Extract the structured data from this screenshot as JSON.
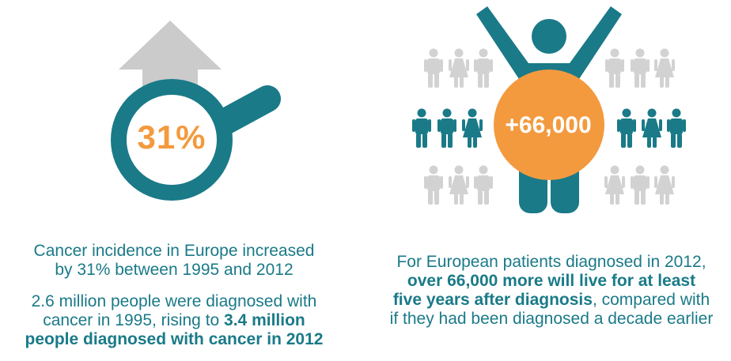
{
  "left": {
    "percent": "31%",
    "line1": "Cancer incidence in Europe increased",
    "line2": "by 31% between 1995 and 2012",
    "line3": "2.6 million people were diagnosed with",
    "line4_plain": "cancer in 1995, rising to ",
    "line4_bold": "3.4 million",
    "line5_bold": "people diagnosed with cancer in 2012"
  },
  "right": {
    "plus_number": "+66,000",
    "line1": "For European patients diagnosed in 2012,",
    "line2_bold": "over 66,000 more will live for at least",
    "line3_bold": "five years after diagnosis",
    "line3_plain": ", compared with",
    "line4": "if they had been diagnosed a decade earlier"
  },
  "colors": {
    "teal": "#1a7a88",
    "orange": "#f39a3e",
    "gray_arrow": "#cbcbcb",
    "gray_people": "#d2d2d2"
  },
  "icons": [
    "up-arrow-icon",
    "magnifying-glass-icon",
    "person-icon"
  ]
}
